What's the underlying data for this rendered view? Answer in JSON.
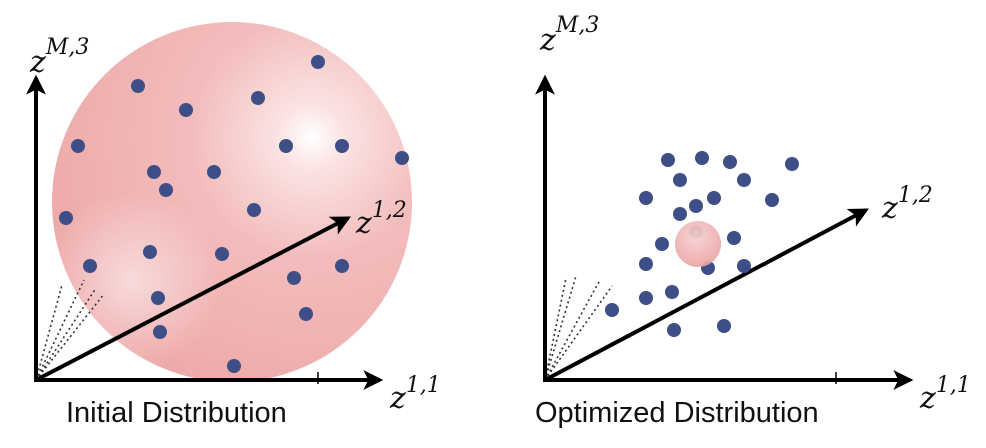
{
  "panels": [
    {
      "caption": "Initial Distribution",
      "axes": {
        "vertical": {
          "base": "z",
          "sup": "M,3"
        },
        "diagonal": {
          "base": "z",
          "sup": "1,2"
        },
        "horizontal": {
          "base": "z",
          "sup": "1,1"
        }
      },
      "sphere": "large"
    },
    {
      "caption": "Optimized Distribution",
      "axes": {
        "vertical": {
          "base": "z",
          "sup": "M,3"
        },
        "diagonal": {
          "base": "z",
          "sup": "1,2"
        },
        "horizontal": {
          "base": "z",
          "sup": "1,1"
        }
      },
      "sphere": "small"
    }
  ],
  "colors": {
    "point": "#3d4f86",
    "sphere": "#f2b6b6",
    "sphere_edge": "#e39a9a",
    "axis": "#000000"
  }
}
